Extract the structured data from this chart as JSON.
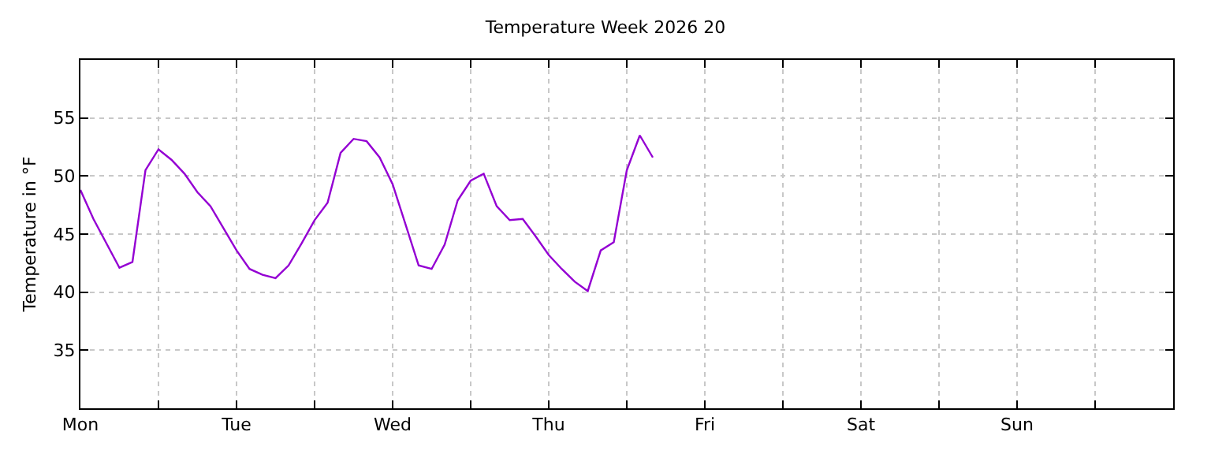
{
  "chart_data": {
    "type": "line",
    "title": "Temperature Week 2026 20",
    "ylabel": "Temperature in °F",
    "categories": [
      "Mon",
      null,
      null,
      null,
      null,
      null,
      null,
      null,
      null,
      null,
      null,
      null,
      "Tue",
      null,
      null,
      null,
      null,
      null,
      null,
      null,
      null,
      null,
      null,
      null,
      "Wed",
      null,
      null,
      null,
      null,
      null,
      null,
      null,
      null,
      null,
      null,
      null,
      "Thu",
      null,
      null,
      null,
      null,
      null,
      null,
      null,
      null,
      null,
      null,
      null,
      "Fri",
      null,
      null,
      null,
      null,
      null,
      null,
      null,
      null,
      null,
      null,
      null,
      "Sat",
      null,
      null,
      null,
      null,
      null,
      null,
      null,
      null,
      null,
      null,
      null,
      "Sun",
      null,
      null,
      null,
      null,
      null,
      null,
      null,
      null,
      null,
      null,
      null,
      null
    ],
    "series": [
      {
        "color": "#9400d3",
        "values": [
          48.8,
          46.3,
          44.2,
          42.1,
          42.6,
          50.5,
          52.3,
          51.4,
          50.2,
          48.6,
          47.4,
          45.5,
          43.6,
          42.0,
          41.5,
          41.2,
          42.3,
          44.2,
          46.2,
          47.7,
          52.0,
          53.2,
          53.0,
          51.6,
          49.3,
          45.8,
          42.3,
          42.0,
          44.1,
          47.9,
          49.6,
          50.2,
          47.4,
          46.2,
          46.3,
          44.8,
          43.2,
          42.0,
          40.9,
          40.1,
          43.6,
          44.3,
          50.5,
          53.5,
          51.6,
          null,
          null,
          null,
          null,
          null,
          null,
          null,
          null,
          null,
          null,
          null,
          null,
          null,
          null,
          null,
          null,
          null,
          null,
          null,
          null,
          null,
          null,
          null,
          null,
          null,
          null,
          null,
          null,
          null,
          null,
          null,
          null,
          null,
          null,
          null,
          null,
          null,
          null,
          null,
          null
        ]
      }
    ],
    "ylim": [
      30,
      60
    ],
    "yticks": [
      35,
      40,
      45,
      50,
      55
    ],
    "grid": true,
    "marker": "none",
    "line_style": "solid"
  }
}
